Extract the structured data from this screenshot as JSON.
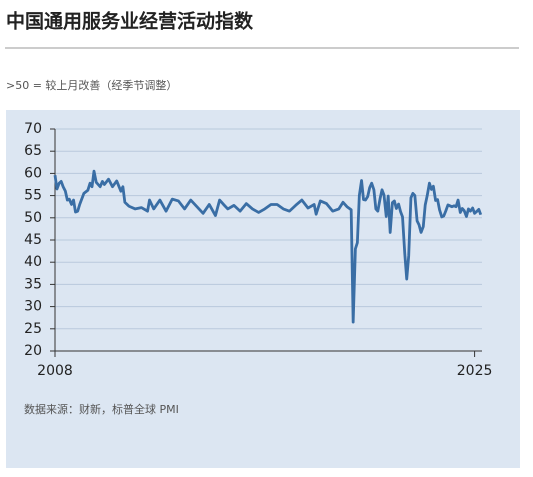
{
  "chart_data": {
    "type": "line",
    "title": "中国通用服务业经营活动指数",
    "subtitle": ">50 = 较上月改善（经季节调整）",
    "source": "数据来源：财新，标普全球 PMI",
    "x": [
      2008.0,
      2008.08,
      2008.17,
      2008.25,
      2008.33,
      2008.42,
      2008.5,
      2008.58,
      2008.67,
      2008.75,
      2008.83,
      2008.92,
      2009.0,
      2009.17,
      2009.33,
      2009.42,
      2009.5,
      2009.58,
      2009.67,
      2009.75,
      2009.83,
      2009.92,
      2010.0,
      2010.17,
      2010.33,
      2010.5,
      2010.67,
      2010.75,
      2010.83,
      2011.0,
      2011.25,
      2011.5,
      2011.75,
      2011.83,
      2012.0,
      2012.25,
      2012.5,
      2012.75,
      2013.0,
      2013.25,
      2013.5,
      2013.75,
      2014.0,
      2014.25,
      2014.5,
      2014.67,
      2014.83,
      2015.0,
      2015.25,
      2015.5,
      2015.75,
      2016.0,
      2016.25,
      2016.5,
      2016.75,
      2017.0,
      2017.25,
      2017.5,
      2017.75,
      2018.0,
      2018.25,
      2018.5,
      2018.58,
      2018.75,
      2019.0,
      2019.25,
      2019.5,
      2019.67,
      2019.83,
      2020.0,
      2020.08,
      2020.17,
      2020.25,
      2020.33,
      2020.42,
      2020.5,
      2020.58,
      2020.67,
      2020.75,
      2020.83,
      2020.92,
      2021.0,
      2021.08,
      2021.17,
      2021.25,
      2021.33,
      2021.42,
      2021.5,
      2021.58,
      2021.67,
      2021.75,
      2021.83,
      2021.92,
      2022.0,
      2022.08,
      2022.17,
      2022.25,
      2022.33,
      2022.42,
      2022.5,
      2022.58,
      2022.67,
      2022.75,
      2022.83,
      2022.92,
      2023.0,
      2023.08,
      2023.17,
      2023.25,
      2023.33,
      2023.42,
      2023.5,
      2023.58,
      2023.67,
      2023.75,
      2023.83,
      2023.92,
      2024.0,
      2024.08,
      2024.17,
      2024.25,
      2024.33,
      2024.42,
      2024.5,
      2024.58,
      2024.67,
      2024.75,
      2024.83,
      2024.92,
      2025.0,
      2025.08,
      2025.17,
      2025.25
    ],
    "series": [
      {
        "color": "#3a6ea5",
        "values": [
          59.6,
          56.5,
          57.8,
          58.2,
          57.0,
          56.0,
          54.0,
          54.2,
          53.0,
          54.0,
          51.3,
          51.5,
          53.0,
          55.5,
          56.2,
          57.8,
          57.0,
          60.5,
          58.0,
          57.5,
          57.0,
          58.2,
          57.5,
          58.7,
          57.0,
          58.3,
          56.0,
          57.0,
          53.5,
          52.6,
          52.0,
          52.3,
          51.5,
          54.0,
          52.0,
          54.0,
          51.5,
          54.2,
          53.8,
          52.0,
          54.0,
          52.5,
          51.0,
          53.0,
          50.5,
          54.0,
          53.0,
          52.0,
          52.8,
          51.5,
          53.2,
          52.0,
          51.2,
          52.0,
          53.0,
          53.0,
          52.0,
          51.5,
          52.8,
          54.0,
          52.2,
          53.0,
          50.8,
          53.8,
          53.2,
          51.5,
          52.0,
          53.5,
          52.5,
          51.8,
          26.5,
          43.0,
          44.4,
          55.0,
          58.4,
          54.1,
          54.0,
          54.8,
          56.8,
          57.8,
          56.3,
          52.0,
          51.5,
          54.3,
          56.3,
          55.1,
          50.3,
          54.9,
          46.7,
          53.4,
          53.8,
          52.1,
          53.1,
          51.4,
          50.2,
          42.0,
          36.2,
          41.4,
          54.5,
          55.5,
          55.0,
          49.3,
          48.4,
          46.7,
          48.0,
          52.9,
          55.0,
          57.8,
          56.4,
          57.1,
          53.9,
          54.1,
          51.8,
          50.2,
          50.4,
          51.5,
          52.9,
          52.7,
          52.5,
          52.7,
          52.5,
          54.0,
          51.2,
          52.1,
          51.6,
          50.3,
          52.0,
          51.5,
          52.2,
          51.0,
          51.4,
          51.9,
          50.7
        ]
      }
    ],
    "xlim": [
      2008,
      2025.3
    ],
    "xticks": [
      2008,
      2025
    ],
    "ylim": [
      20,
      70
    ],
    "yticks": [
      20,
      25,
      30,
      35,
      40,
      45,
      50,
      55,
      60,
      65,
      70
    ],
    "grid": true
  }
}
